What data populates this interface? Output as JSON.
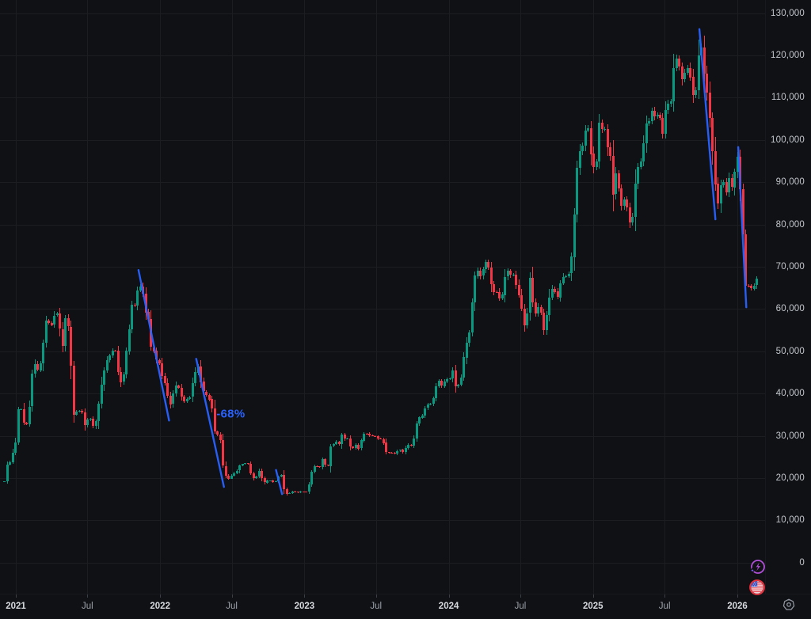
{
  "chart": {
    "background": "#101114",
    "grid_color": "rgba(240,243,250,0.055)",
    "y_axis": {
      "text_color": "#c2c6cd",
      "ticks": [
        {
          "label": "0",
          "value": 0
        },
        {
          "label": "10,000",
          "value": 10000
        },
        {
          "label": "20,000",
          "value": 20000
        },
        {
          "label": "30,000",
          "value": 30000
        },
        {
          "label": "40,000",
          "value": 40000
        },
        {
          "label": "50,000",
          "value": 50000
        },
        {
          "label": "60,000",
          "value": 60000
        },
        {
          "label": "70,000",
          "value": 70000
        },
        {
          "label": "80,000",
          "value": 80000
        },
        {
          "label": "90,000",
          "value": 90000
        },
        {
          "label": "100,000",
          "value": 100000
        },
        {
          "label": "110,000",
          "value": 110000
        },
        {
          "label": "120,000",
          "value": 120000
        },
        {
          "label": "130,000",
          "value": 130000
        }
      ]
    },
    "x_axis": {
      "major_color": "#d6d9de",
      "minor_color": "#9da2ab",
      "ticks": [
        {
          "label": "2021",
          "yf": 2021.0,
          "major": true
        },
        {
          "label": "Jul",
          "yf": 2021.496,
          "major": false
        },
        {
          "label": "2022",
          "yf": 2022.0,
          "major": true
        },
        {
          "label": "Jul",
          "yf": 2022.496,
          "major": false
        },
        {
          "label": "2023",
          "yf": 2023.0,
          "major": true
        },
        {
          "label": "Jul",
          "yf": 2023.496,
          "major": false
        },
        {
          "label": "2024",
          "yf": 2024.0,
          "major": true
        },
        {
          "label": "Jul",
          "yf": 2024.496,
          "major": false
        },
        {
          "label": "2025",
          "yf": 2025.0,
          "major": true
        },
        {
          "label": "Jul",
          "yf": 2025.496,
          "major": false
        },
        {
          "label": "2026",
          "yf": 2026.0,
          "major": true
        }
      ]
    },
    "icons": {
      "price_scale_buttons": [
        "ai-lightning-icon",
        "us-flag-icon"
      ],
      "corner_button": "gear-icon"
    },
    "chart_data": {
      "type": "candlestick",
      "interval": "1W",
      "x_unit": "decimal_year",
      "y_unit": "USD",
      "ylim": [
        0,
        130000
      ],
      "xlim": [
        2020.9,
        2026.35
      ],
      "up_color": "#089981",
      "down_color": "#f23645",
      "weekly_close_keypoints": [
        [
          2020.92,
          19100
        ],
        [
          2020.94,
          23400
        ],
        [
          2020.96,
          23800
        ],
        [
          2020.98,
          26400
        ],
        [
          2021.0,
          29000
        ],
        [
          2021.02,
          38200
        ],
        [
          2021.04,
          35800
        ],
        [
          2021.06,
          32100
        ],
        [
          2021.08,
          33100
        ],
        [
          2021.1,
          38900
        ],
        [
          2021.12,
          48600
        ],
        [
          2021.14,
          45200
        ],
        [
          2021.16,
          46300
        ],
        [
          2021.18,
          48800
        ],
        [
          2021.2,
          56800
        ],
        [
          2021.22,
          57400
        ],
        [
          2021.24,
          55800
        ],
        [
          2021.26,
          58200
        ],
        [
          2021.28,
          59900
        ],
        [
          2021.3,
          56200
        ],
        [
          2021.32,
          50100
        ],
        [
          2021.34,
          57800
        ],
        [
          2021.36,
          56000
        ],
        [
          2021.38,
          46400
        ],
        [
          2021.4,
          34700
        ],
        [
          2021.42,
          35700
        ],
        [
          2021.44,
          35800
        ],
        [
          2021.46,
          35500
        ],
        [
          2021.48,
          31600
        ],
        [
          2021.5,
          34700
        ],
        [
          2021.52,
          33500
        ],
        [
          2021.54,
          31500
        ],
        [
          2021.56,
          34300
        ],
        [
          2021.58,
          39900
        ],
        [
          2021.6,
          43800
        ],
        [
          2021.62,
          47100
        ],
        [
          2021.64,
          48900
        ],
        [
          2021.66,
          48800
        ],
        [
          2021.68,
          51800
        ],
        [
          2021.7,
          46100
        ],
        [
          2021.72,
          42700
        ],
        [
          2021.74,
          43200
        ],
        [
          2021.76,
          49200
        ],
        [
          2021.78,
          54700
        ],
        [
          2021.8,
          61300
        ],
        [
          2021.82,
          60900
        ],
        [
          2021.84,
          64400
        ],
        [
          2021.86,
          65500
        ],
        [
          2021.88,
          63300
        ],
        [
          2021.9,
          58700
        ],
        [
          2021.92,
          57300
        ],
        [
          2021.94,
          49400
        ],
        [
          2021.96,
          50100
        ],
        [
          2021.98,
          46700
        ],
        [
          2022.0,
          47300
        ],
        [
          2022.02,
          41900
        ],
        [
          2022.04,
          43100
        ],
        [
          2022.06,
          36200
        ],
        [
          2022.08,
          38500
        ],
        [
          2022.1,
          41500
        ],
        [
          2022.12,
          42200
        ],
        [
          2022.14,
          40100
        ],
        [
          2022.16,
          37700
        ],
        [
          2022.18,
          39000
        ],
        [
          2022.2,
          38400
        ],
        [
          2022.22,
          41800
        ],
        [
          2022.24,
          44500
        ],
        [
          2022.26,
          46800
        ],
        [
          2022.28,
          42800
        ],
        [
          2022.3,
          40400
        ],
        [
          2022.32,
          39700
        ],
        [
          2022.34,
          38600
        ],
        [
          2022.36,
          35900
        ],
        [
          2022.38,
          30100
        ],
        [
          2022.4,
          30300
        ],
        [
          2022.42,
          28400
        ],
        [
          2022.44,
          20500
        ],
        [
          2022.46,
          20600
        ],
        [
          2022.48,
          19300
        ],
        [
          2022.5,
          21600
        ],
        [
          2022.52,
          20900
        ],
        [
          2022.54,
          22500
        ],
        [
          2022.56,
          23300
        ],
        [
          2022.58,
          23000
        ],
        [
          2022.6,
          24300
        ],
        [
          2022.62,
          21500
        ],
        [
          2022.64,
          20000
        ],
        [
          2022.66,
          19800
        ],
        [
          2022.68,
          22000
        ],
        [
          2022.7,
          20100
        ],
        [
          2022.72,
          18900
        ],
        [
          2022.74,
          19300
        ],
        [
          2022.76,
          19400
        ],
        [
          2022.78,
          19100
        ],
        [
          2022.8,
          19200
        ],
        [
          2022.82,
          20600
        ],
        [
          2022.84,
          20900
        ],
        [
          2022.86,
          16300
        ],
        [
          2022.88,
          16300
        ],
        [
          2022.9,
          16500
        ],
        [
          2022.92,
          17100
        ],
        [
          2022.94,
          16600
        ],
        [
          2022.96,
          16600
        ],
        [
          2022.98,
          16900
        ],
        [
          2023.0,
          16600
        ],
        [
          2023.02,
          16900
        ],
        [
          2023.04,
          20900
        ],
        [
          2023.06,
          22700
        ],
        [
          2023.08,
          23000
        ],
        [
          2023.1,
          21900
        ],
        [
          2023.12,
          24600
        ],
        [
          2023.14,
          23200
        ],
        [
          2023.16,
          22400
        ],
        [
          2023.18,
          27400
        ],
        [
          2023.2,
          28000
        ],
        [
          2023.22,
          28500
        ],
        [
          2023.24,
          27900
        ],
        [
          2023.26,
          30300
        ],
        [
          2023.28,
          29200
        ],
        [
          2023.3,
          29500
        ],
        [
          2023.32,
          26900
        ],
        [
          2023.34,
          27100
        ],
        [
          2023.36,
          28100
        ],
        [
          2023.38,
          26300
        ],
        [
          2023.4,
          30500
        ],
        [
          2023.42,
          30600
        ],
        [
          2023.44,
          30300
        ],
        [
          2023.46,
          29800
        ],
        [
          2023.48,
          30100
        ],
        [
          2023.5,
          29200
        ],
        [
          2023.52,
          29300
        ],
        [
          2023.54,
          29400
        ],
        [
          2023.56,
          26000
        ],
        [
          2023.58,
          26100
        ],
        [
          2023.6,
          25900
        ],
        [
          2023.62,
          25800
        ],
        [
          2023.64,
          26500
        ],
        [
          2023.66,
          26600
        ],
        [
          2023.68,
          26200
        ],
        [
          2023.7,
          27000
        ],
        [
          2023.72,
          27900
        ],
        [
          2023.74,
          27600
        ],
        [
          2023.76,
          29700
        ],
        [
          2023.78,
          33900
        ],
        [
          2023.8,
          34600
        ],
        [
          2023.82,
          35000
        ],
        [
          2023.84,
          37100
        ],
        [
          2023.86,
          37400
        ],
        [
          2023.88,
          37800
        ],
        [
          2023.9,
          39900
        ],
        [
          2023.92,
          43800
        ],
        [
          2023.94,
          41900
        ],
        [
          2023.96,
          42200
        ],
        [
          2023.98,
          43700
        ],
        [
          2024.0,
          42300
        ],
        [
          2024.02,
          46300
        ],
        [
          2024.04,
          41700
        ],
        [
          2024.06,
          42000
        ],
        [
          2024.08,
          43100
        ],
        [
          2024.1,
          48300
        ],
        [
          2024.12,
          52100
        ],
        [
          2024.14,
          54500
        ],
        [
          2024.16,
          62000
        ],
        [
          2024.18,
          68300
        ],
        [
          2024.2,
          69000
        ],
        [
          2024.22,
          67200
        ],
        [
          2024.24,
          69600
        ],
        [
          2024.26,
          71300
        ],
        [
          2024.28,
          69400
        ],
        [
          2024.3,
          63800
        ],
        [
          2024.32,
          64000
        ],
        [
          2024.34,
          63900
        ],
        [
          2024.36,
          60800
        ],
        [
          2024.38,
          66300
        ],
        [
          2024.4,
          69300
        ],
        [
          2024.42,
          67700
        ],
        [
          2024.44,
          69000
        ],
        [
          2024.46,
          66200
        ],
        [
          2024.48,
          64300
        ],
        [
          2024.5,
          60900
        ],
        [
          2024.52,
          55900
        ],
        [
          2024.54,
          58100
        ],
        [
          2024.56,
          68000
        ],
        [
          2024.58,
          61500
        ],
        [
          2024.6,
          58700
        ],
        [
          2024.62,
          60900
        ],
        [
          2024.64,
          59100
        ],
        [
          2024.66,
          54600
        ],
        [
          2024.68,
          59400
        ],
        [
          2024.7,
          63600
        ],
        [
          2024.72,
          65600
        ],
        [
          2024.74,
          63300
        ],
        [
          2024.76,
          62800
        ],
        [
          2024.78,
          68000
        ],
        [
          2024.8,
          67000
        ],
        [
          2024.82,
          68000
        ],
        [
          2024.84,
          69400
        ],
        [
          2024.86,
          76700
        ],
        [
          2024.88,
          90600
        ],
        [
          2024.9,
          97700
        ],
        [
          2024.92,
          97300
        ],
        [
          2024.94,
          101300
        ],
        [
          2024.96,
          104800
        ],
        [
          2024.98,
          96900
        ],
        [
          2025.0,
          93500
        ],
        [
          2025.02,
          94600
        ],
        [
          2025.04,
          104500
        ],
        [
          2025.06,
          102700
        ],
        [
          2025.08,
          102100
        ],
        [
          2025.1,
          97500
        ],
        [
          2025.12,
          96100
        ],
        [
          2025.14,
          84700
        ],
        [
          2025.16,
          94300
        ],
        [
          2025.18,
          86100
        ],
        [
          2025.2,
          83800
        ],
        [
          2025.22,
          86800
        ],
        [
          2025.24,
          82600
        ],
        [
          2025.26,
          78900
        ],
        [
          2025.28,
          85300
        ],
        [
          2025.3,
          93800
        ],
        [
          2025.32,
          94000
        ],
        [
          2025.34,
          97000
        ],
        [
          2025.36,
          104100
        ],
        [
          2025.38,
          103700
        ],
        [
          2025.4,
          107300
        ],
        [
          2025.42,
          105600
        ],
        [
          2025.44,
          105700
        ],
        [
          2025.46,
          105500
        ],
        [
          2025.48,
          101000
        ],
        [
          2025.5,
          107300
        ],
        [
          2025.52,
          108200
        ],
        [
          2025.54,
          109200
        ],
        [
          2025.56,
          117500
        ],
        [
          2025.58,
          119000
        ],
        [
          2025.6,
          117300
        ],
        [
          2025.62,
          114200
        ],
        [
          2025.64,
          116500
        ],
        [
          2025.66,
          118100
        ],
        [
          2025.68,
          113500
        ],
        [
          2025.7,
          109000
        ],
        [
          2025.72,
          114500
        ],
        [
          2025.74,
          124500
        ],
        [
          2025.76,
          118000
        ],
        [
          2025.78,
          112000
        ],
        [
          2025.8,
          108500
        ],
        [
          2025.82,
          99500
        ],
        [
          2025.84,
          91500
        ],
        [
          2025.86,
          84000
        ],
        [
          2025.88,
          88500
        ],
        [
          2025.9,
          90500
        ],
        [
          2025.92,
          87500
        ],
        [
          2025.94,
          91000
        ],
        [
          2025.96,
          88500
        ],
        [
          2025.98,
          92500
        ],
        [
          2026.0,
          96000
        ],
        [
          2026.02,
          87500
        ],
        [
          2026.04,
          76000
        ],
        [
          2026.06,
          63000
        ],
        [
          2026.08,
          66500
        ],
        [
          2026.1,
          64500
        ],
        [
          2026.12,
          65800
        ],
        [
          2026.145,
          68500
        ]
      ],
      "annotations": {
        "trendline_color": "#2962ff",
        "trendlines": [
          {
            "x1": 2021.85,
            "p1": 69200,
            "x2": 2022.062,
            "p2": 33600
          },
          {
            "x1": 2022.25,
            "p1": 48200,
            "x2": 2022.442,
            "p2": 17900
          },
          {
            "x1": 2022.803,
            "p1": 21900,
            "x2": 2022.845,
            "p2": 16200
          },
          {
            "x1": 2025.737,
            "p1": 126200,
            "x2": 2025.848,
            "p2": 81200
          },
          {
            "x1": 2026.006,
            "p1": 98300,
            "x2": 2026.062,
            "p2": 60400
          }
        ],
        "label": {
          "text": "-68%",
          "x": 2022.39,
          "price": 35200,
          "color": "#2962ff"
        }
      }
    }
  }
}
